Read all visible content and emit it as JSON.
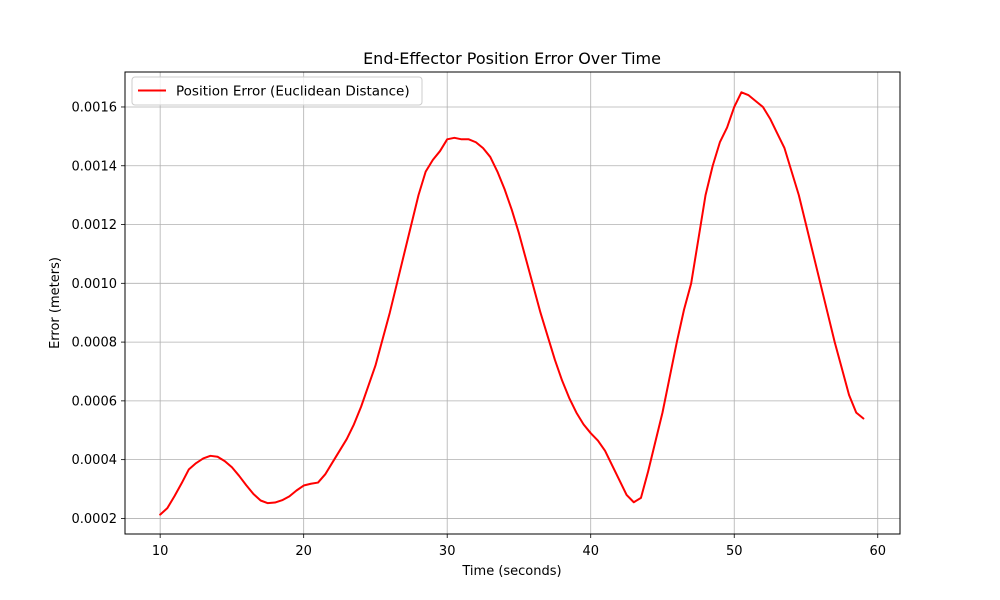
{
  "chart_data": {
    "type": "line",
    "title": "End-Effector Position Error Over Time",
    "xlabel": "Time (seconds)",
    "ylabel": "Error (meters)",
    "xlim": [
      7.55,
      61.55
    ],
    "ylim": [
      0.000147,
      0.001719
    ],
    "x_ticks": [
      10,
      20,
      30,
      40,
      50,
      60
    ],
    "x_tick_labels": [
      "10",
      "20",
      "30",
      "40",
      "50",
      "60"
    ],
    "y_ticks": [
      0.0002,
      0.0004,
      0.0006,
      0.0008,
      0.001,
      0.0012,
      0.0014,
      0.0016
    ],
    "y_tick_labels": [
      "0.0002",
      "0.0004",
      "0.0006",
      "0.0008",
      "0.0010",
      "0.0012",
      "0.0014",
      "0.0016"
    ],
    "grid": true,
    "legend_position": "top-left",
    "series": [
      {
        "name": "Position Error (Euclidean Distance)",
        "color": "#ff0000",
        "x": [
          10.0,
          10.5,
          11.0,
          11.5,
          12.0,
          12.5,
          13.0,
          13.5,
          14.0,
          14.5,
          15.0,
          15.5,
          16.0,
          16.5,
          17.0,
          17.5,
          18.0,
          18.5,
          19.0,
          19.5,
          20.0,
          20.5,
          21.0,
          21.5,
          22.0,
          22.5,
          23.0,
          23.5,
          24.0,
          24.5,
          25.0,
          25.5,
          26.0,
          26.5,
          27.0,
          27.5,
          28.0,
          28.5,
          29.0,
          29.5,
          30.0,
          30.5,
          31.0,
          31.5,
          32.0,
          32.5,
          33.0,
          33.5,
          34.0,
          34.5,
          35.0,
          35.5,
          36.0,
          36.5,
          37.0,
          37.5,
          38.0,
          38.5,
          39.0,
          39.5,
          40.0,
          40.5,
          41.0,
          41.5,
          42.0,
          42.5,
          43.0,
          43.5,
          44.0,
          44.5,
          45.0,
          45.5,
          46.0,
          46.5,
          47.0,
          47.5,
          48.0,
          48.5,
          49.0,
          49.5,
          50.0,
          50.5,
          51.0,
          51.5,
          52.0,
          52.5,
          53.0,
          53.5,
          54.0,
          54.5,
          55.0,
          55.5,
          56.0,
          56.5,
          57.0,
          57.5,
          58.0,
          58.5,
          59.0
        ],
        "y": [
          0.000213,
          0.000235,
          0.000276,
          0.00032,
          0.000367,
          0.000388,
          0.000404,
          0.000413,
          0.00041,
          0.000395,
          0.000374,
          0.000345,
          0.000313,
          0.000283,
          0.000261,
          0.000252,
          0.000254,
          0.000262,
          0.000275,
          0.000295,
          0.000312,
          0.000318,
          0.000322,
          0.00035,
          0.00039,
          0.00043,
          0.00047,
          0.00052,
          0.00058,
          0.00065,
          0.00072,
          0.00081,
          0.0009,
          0.001,
          0.0011,
          0.0012,
          0.0013,
          0.00138,
          0.00142,
          0.00145,
          0.00149,
          0.001495,
          0.00149,
          0.00149,
          0.00148,
          0.00146,
          0.00143,
          0.00138,
          0.00132,
          0.00125,
          0.00117,
          0.00108,
          0.00099,
          0.0009,
          0.00082,
          0.00074,
          0.00067,
          0.00061,
          0.00056,
          0.00052,
          0.00049,
          0.000465,
          0.00043,
          0.00038,
          0.00033,
          0.00028,
          0.000255,
          0.00027,
          0.00036,
          0.00046,
          0.00056,
          0.00068,
          0.0008,
          0.00091,
          0.001,
          0.00115,
          0.0013,
          0.0014,
          0.00148,
          0.00153,
          0.0016,
          0.00165,
          0.00164,
          0.00162,
          0.0016,
          0.00156,
          0.00151,
          0.00146,
          0.00138,
          0.0013,
          0.0012,
          0.0011,
          0.001,
          0.0009,
          0.0008,
          0.00071,
          0.00062,
          0.00056,
          0.00054
        ]
      }
    ]
  }
}
